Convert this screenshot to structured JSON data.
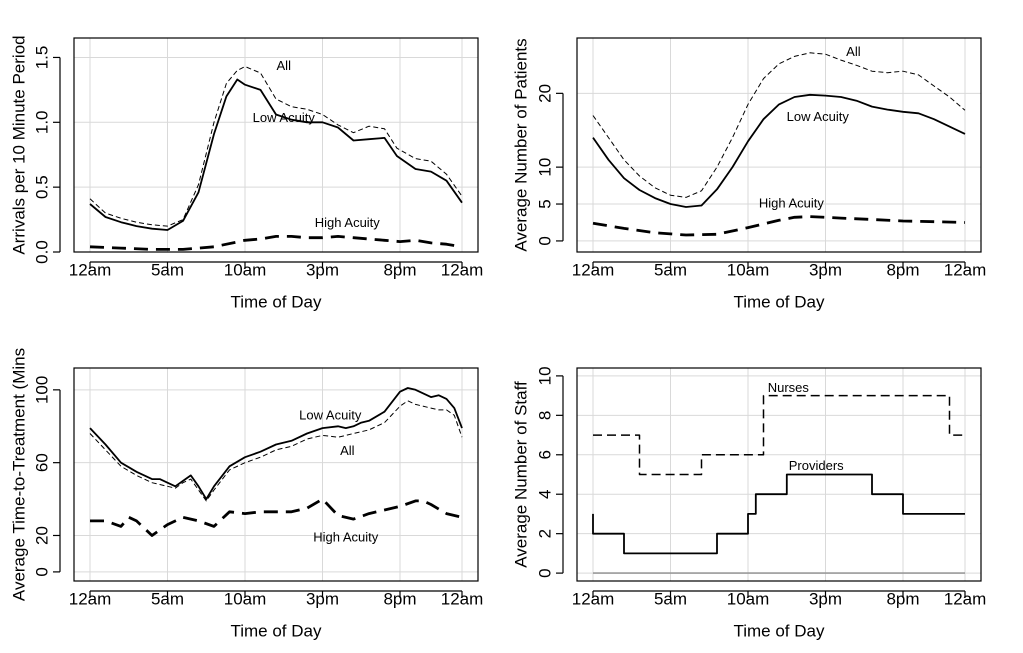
{
  "chart_data": [
    {
      "id": "arrivals",
      "type": "line",
      "xlabel": "Time of Day",
      "ylabel": "Arrivals per 10 Minute Period",
      "xlim": [
        0,
        24
      ],
      "ylim": [
        0,
        1.65
      ],
      "xticks": [
        0,
        5,
        10,
        15,
        20,
        24
      ],
      "xtick_labels": [
        "12am",
        "5am",
        "10am",
        "3pm",
        "8pm",
        "12am"
      ],
      "yticks": [
        0,
        0.5,
        1.0,
        1.5
      ],
      "ytick_labels": [
        "0.0",
        "0.5",
        "1.0",
        "1.5"
      ],
      "series": [
        {
          "name": "All",
          "style": "thin-dashed",
          "x": [
            0,
            1,
            2,
            3,
            4,
            5,
            6,
            7,
            8,
            8.8,
            9.5,
            10,
            11,
            12,
            13,
            14,
            15,
            16,
            17,
            18,
            19,
            19.8,
            21,
            22,
            23,
            24
          ],
          "y": [
            0.41,
            0.3,
            0.26,
            0.23,
            0.21,
            0.2,
            0.25,
            0.52,
            1.0,
            1.3,
            1.4,
            1.43,
            1.38,
            1.18,
            1.12,
            1.1,
            1.06,
            0.98,
            0.92,
            0.97,
            0.95,
            0.8,
            0.72,
            0.7,
            0.6,
            0.43
          ]
        },
        {
          "name": "Low Acuity",
          "style": "solid",
          "x": [
            0,
            1,
            2,
            3,
            4,
            5,
            6,
            7,
            8,
            8.8,
            9.5,
            10,
            11,
            12,
            13,
            14,
            15,
            16,
            17,
            18,
            19,
            19.8,
            21,
            22,
            23,
            24
          ],
          "y": [
            0.37,
            0.27,
            0.23,
            0.2,
            0.18,
            0.17,
            0.24,
            0.46,
            0.91,
            1.2,
            1.33,
            1.29,
            1.25,
            1.06,
            1.02,
            1.0,
            1.0,
            0.96,
            0.86,
            0.87,
            0.88,
            0.74,
            0.64,
            0.62,
            0.55,
            0.38
          ]
        },
        {
          "name": "High Acuity",
          "style": "thick-dashed",
          "x": [
            0,
            2,
            4,
            6,
            8,
            10,
            11,
            12,
            13,
            14,
            15,
            16,
            17,
            18,
            19,
            20,
            21,
            22,
            23,
            24
          ],
          "y": [
            0.04,
            0.03,
            0.02,
            0.02,
            0.04,
            0.09,
            0.1,
            0.12,
            0.12,
            0.11,
            0.11,
            0.12,
            0.11,
            0.1,
            0.09,
            0.08,
            0.09,
            0.07,
            0.06,
            0.04
          ]
        }
      ],
      "annotations": [
        {
          "text": "All",
          "x": 12.5,
          "y": 1.43
        },
        {
          "text": "Low Acuity",
          "x": 12.5,
          "y": 1.03
        },
        {
          "text": "High Acuity",
          "x": 16.6,
          "y": 0.22
        }
      ]
    },
    {
      "id": "patients",
      "type": "line",
      "xlabel": "Time of Day",
      "ylabel": "Average Number of Patients",
      "xlim": [
        0,
        24
      ],
      "ylim": [
        -1.5,
        27.5
      ],
      "xticks": [
        0,
        5,
        10,
        15,
        20,
        24
      ],
      "xtick_labels": [
        "12am",
        "5am",
        "10am",
        "3pm",
        "8pm",
        "12am"
      ],
      "yticks": [
        0,
        5,
        10,
        20
      ],
      "ytick_labels": [
        "0",
        "5",
        "10",
        "20"
      ],
      "series": [
        {
          "name": "All",
          "style": "thin-dashed",
          "x": [
            0,
            1,
            2,
            3,
            4,
            5,
            6,
            7,
            8,
            9,
            10,
            11,
            12,
            13,
            14,
            15,
            16,
            17,
            18,
            19,
            20,
            21,
            22,
            23,
            24
          ],
          "y": [
            17.0,
            14.0,
            11.0,
            8.8,
            7.2,
            6.2,
            5.9,
            6.8,
            10.0,
            14.0,
            18.5,
            22.0,
            24.0,
            25.0,
            25.5,
            25.3,
            24.5,
            23.8,
            23.0,
            22.8,
            23.0,
            22.5,
            21.0,
            19.5,
            17.7
          ]
        },
        {
          "name": "Low Acuity",
          "style": "solid",
          "x": [
            0,
            1,
            2,
            3,
            4,
            5,
            6,
            7,
            8,
            9,
            10,
            11,
            12,
            13,
            14,
            15,
            16,
            17,
            18,
            19,
            20,
            21,
            22,
            23,
            24
          ],
          "y": [
            14.0,
            11.0,
            8.5,
            6.9,
            5.8,
            5.0,
            4.6,
            4.8,
            7.0,
            10.0,
            13.5,
            16.5,
            18.5,
            19.5,
            19.8,
            19.7,
            19.5,
            19.0,
            18.2,
            17.8,
            17.5,
            17.3,
            16.5,
            15.5,
            14.5
          ]
        },
        {
          "name": "High Acuity",
          "style": "thick-dashed",
          "x": [
            0,
            2,
            4,
            6,
            8,
            10,
            12,
            13,
            14,
            15,
            16,
            18,
            20,
            22,
            24
          ],
          "y": [
            2.4,
            1.7,
            1.1,
            0.8,
            0.9,
            1.8,
            2.8,
            3.2,
            3.3,
            3.2,
            3.1,
            2.9,
            2.7,
            2.6,
            2.5
          ]
        }
      ],
      "annotations": [
        {
          "text": "All",
          "x": 16.8,
          "y": 25.5
        },
        {
          "text": "Low Acuity",
          "x": 14.5,
          "y": 16.7
        },
        {
          "text": "High Acuity",
          "x": 12.8,
          "y": 5.0
        }
      ]
    },
    {
      "id": "time_to_treatment",
      "type": "line",
      "xlabel": "Time of Day",
      "ylabel": "Average Time-to-Treatment (Mins",
      "xlim": [
        0,
        24
      ],
      "ylim": [
        -5,
        112
      ],
      "xticks": [
        0,
        5,
        10,
        15,
        20,
        24
      ],
      "xtick_labels": [
        "12am",
        "5am",
        "10am",
        "3pm",
        "8pm",
        "12am"
      ],
      "yticks": [
        0,
        20,
        60,
        100
      ],
      "ytick_labels": [
        "0",
        "20",
        "60",
        "100"
      ],
      "series": [
        {
          "name": "Low Acuity",
          "style": "solid",
          "x": [
            0,
            1,
            2,
            3,
            4,
            4.5,
            5,
            5.5,
            6,
            6.5,
            7,
            7.5,
            8,
            9,
            10,
            11,
            12,
            13,
            14,
            15,
            16,
            16.5,
            17,
            17.5,
            18,
            19,
            20,
            20.5,
            21,
            22,
            22.5,
            23,
            23.5,
            24
          ],
          "y": [
            79,
            70,
            60,
            55,
            51,
            51,
            49,
            47,
            50,
            53,
            47,
            40,
            47,
            58,
            63,
            66,
            70,
            72,
            76,
            79,
            80,
            79,
            80,
            82,
            83,
            88,
            99,
            101,
            100,
            96,
            97,
            95,
            90,
            79
          ]
        },
        {
          "name": "All",
          "style": "thin-dashed",
          "x": [
            0,
            1,
            2,
            3,
            4,
            4.5,
            5,
            5.5,
            6,
            6.5,
            7,
            7.5,
            8,
            9,
            10,
            11,
            12,
            13,
            14,
            15,
            16,
            16.5,
            17,
            17.5,
            18,
            19,
            20,
            20.5,
            21,
            22,
            22.5,
            23,
            23.5,
            24
          ],
          "y": [
            76,
            67,
            58,
            53,
            49,
            48,
            47,
            46,
            49,
            51,
            45,
            39,
            45,
            56,
            60,
            63,
            67,
            69,
            73,
            75,
            74,
            75,
            76,
            77,
            78,
            82,
            91,
            94,
            92,
            90,
            89,
            89,
            86,
            74
          ]
        },
        {
          "name": "High Acuity",
          "style": "thick-dashed",
          "x": [
            0,
            1,
            2,
            2.5,
            3,
            4,
            5,
            6,
            7,
            8,
            9,
            10,
            11,
            12,
            13,
            14,
            15,
            16,
            17,
            18,
            19,
            20,
            21,
            21.5,
            22,
            23,
            24
          ],
          "y": [
            28,
            28,
            25,
            30,
            28,
            20,
            26,
            30,
            28,
            25,
            33,
            32,
            33,
            33,
            33,
            35,
            40,
            31,
            29,
            32,
            34,
            36,
            39,
            39,
            37,
            32,
            30
          ]
        }
      ],
      "annotations": [
        {
          "text": "Low Acuity",
          "x": 15.5,
          "y": 85.5
        },
        {
          "text": "All",
          "x": 16.6,
          "y": 66
        },
        {
          "text": "High Acuity",
          "x": 16.5,
          "y": 18.5
        }
      ]
    },
    {
      "id": "staff",
      "type": "line",
      "xlabel": "Time of Day",
      "ylabel": "Average Number of Staff",
      "xlim": [
        0,
        24
      ],
      "ylim": [
        -0.4,
        10.4
      ],
      "xticks": [
        0,
        5,
        10,
        15,
        20,
        24
      ],
      "xtick_labels": [
        "12am",
        "5am",
        "10am",
        "3pm",
        "8pm",
        "12am"
      ],
      "yticks": [
        0,
        2,
        4,
        6,
        8,
        10
      ],
      "ytick_labels": [
        "0",
        "2",
        "4",
        "6",
        "8",
        "10"
      ],
      "series": [
        {
          "name": "Nurses",
          "style": "step-dashed",
          "x": [
            0,
            3,
            3,
            7,
            7,
            11,
            11,
            23,
            23,
            24
          ],
          "y": [
            7,
            7,
            5,
            5,
            6,
            6,
            9,
            9,
            7,
            7
          ]
        },
        {
          "name": "Providers",
          "style": "step-solid",
          "x": [
            0,
            0,
            2,
            2,
            8,
            8,
            10,
            10,
            10.5,
            10.5,
            12.5,
            12.5,
            18,
            18,
            20,
            20,
            24
          ],
          "y": [
            3,
            2,
            2,
            1,
            1,
            2,
            2,
            3,
            3,
            4,
            4,
            5,
            5,
            4,
            4,
            3,
            3
          ]
        },
        {
          "name": "baseline",
          "style": "gray",
          "x": [
            0,
            24
          ],
          "y": [
            0,
            0
          ]
        }
      ],
      "annotations": [
        {
          "text": "Nurses",
          "x": 12.6,
          "y": 9.35
        },
        {
          "text": "Providers",
          "x": 14.4,
          "y": 5.4
        }
      ]
    }
  ]
}
